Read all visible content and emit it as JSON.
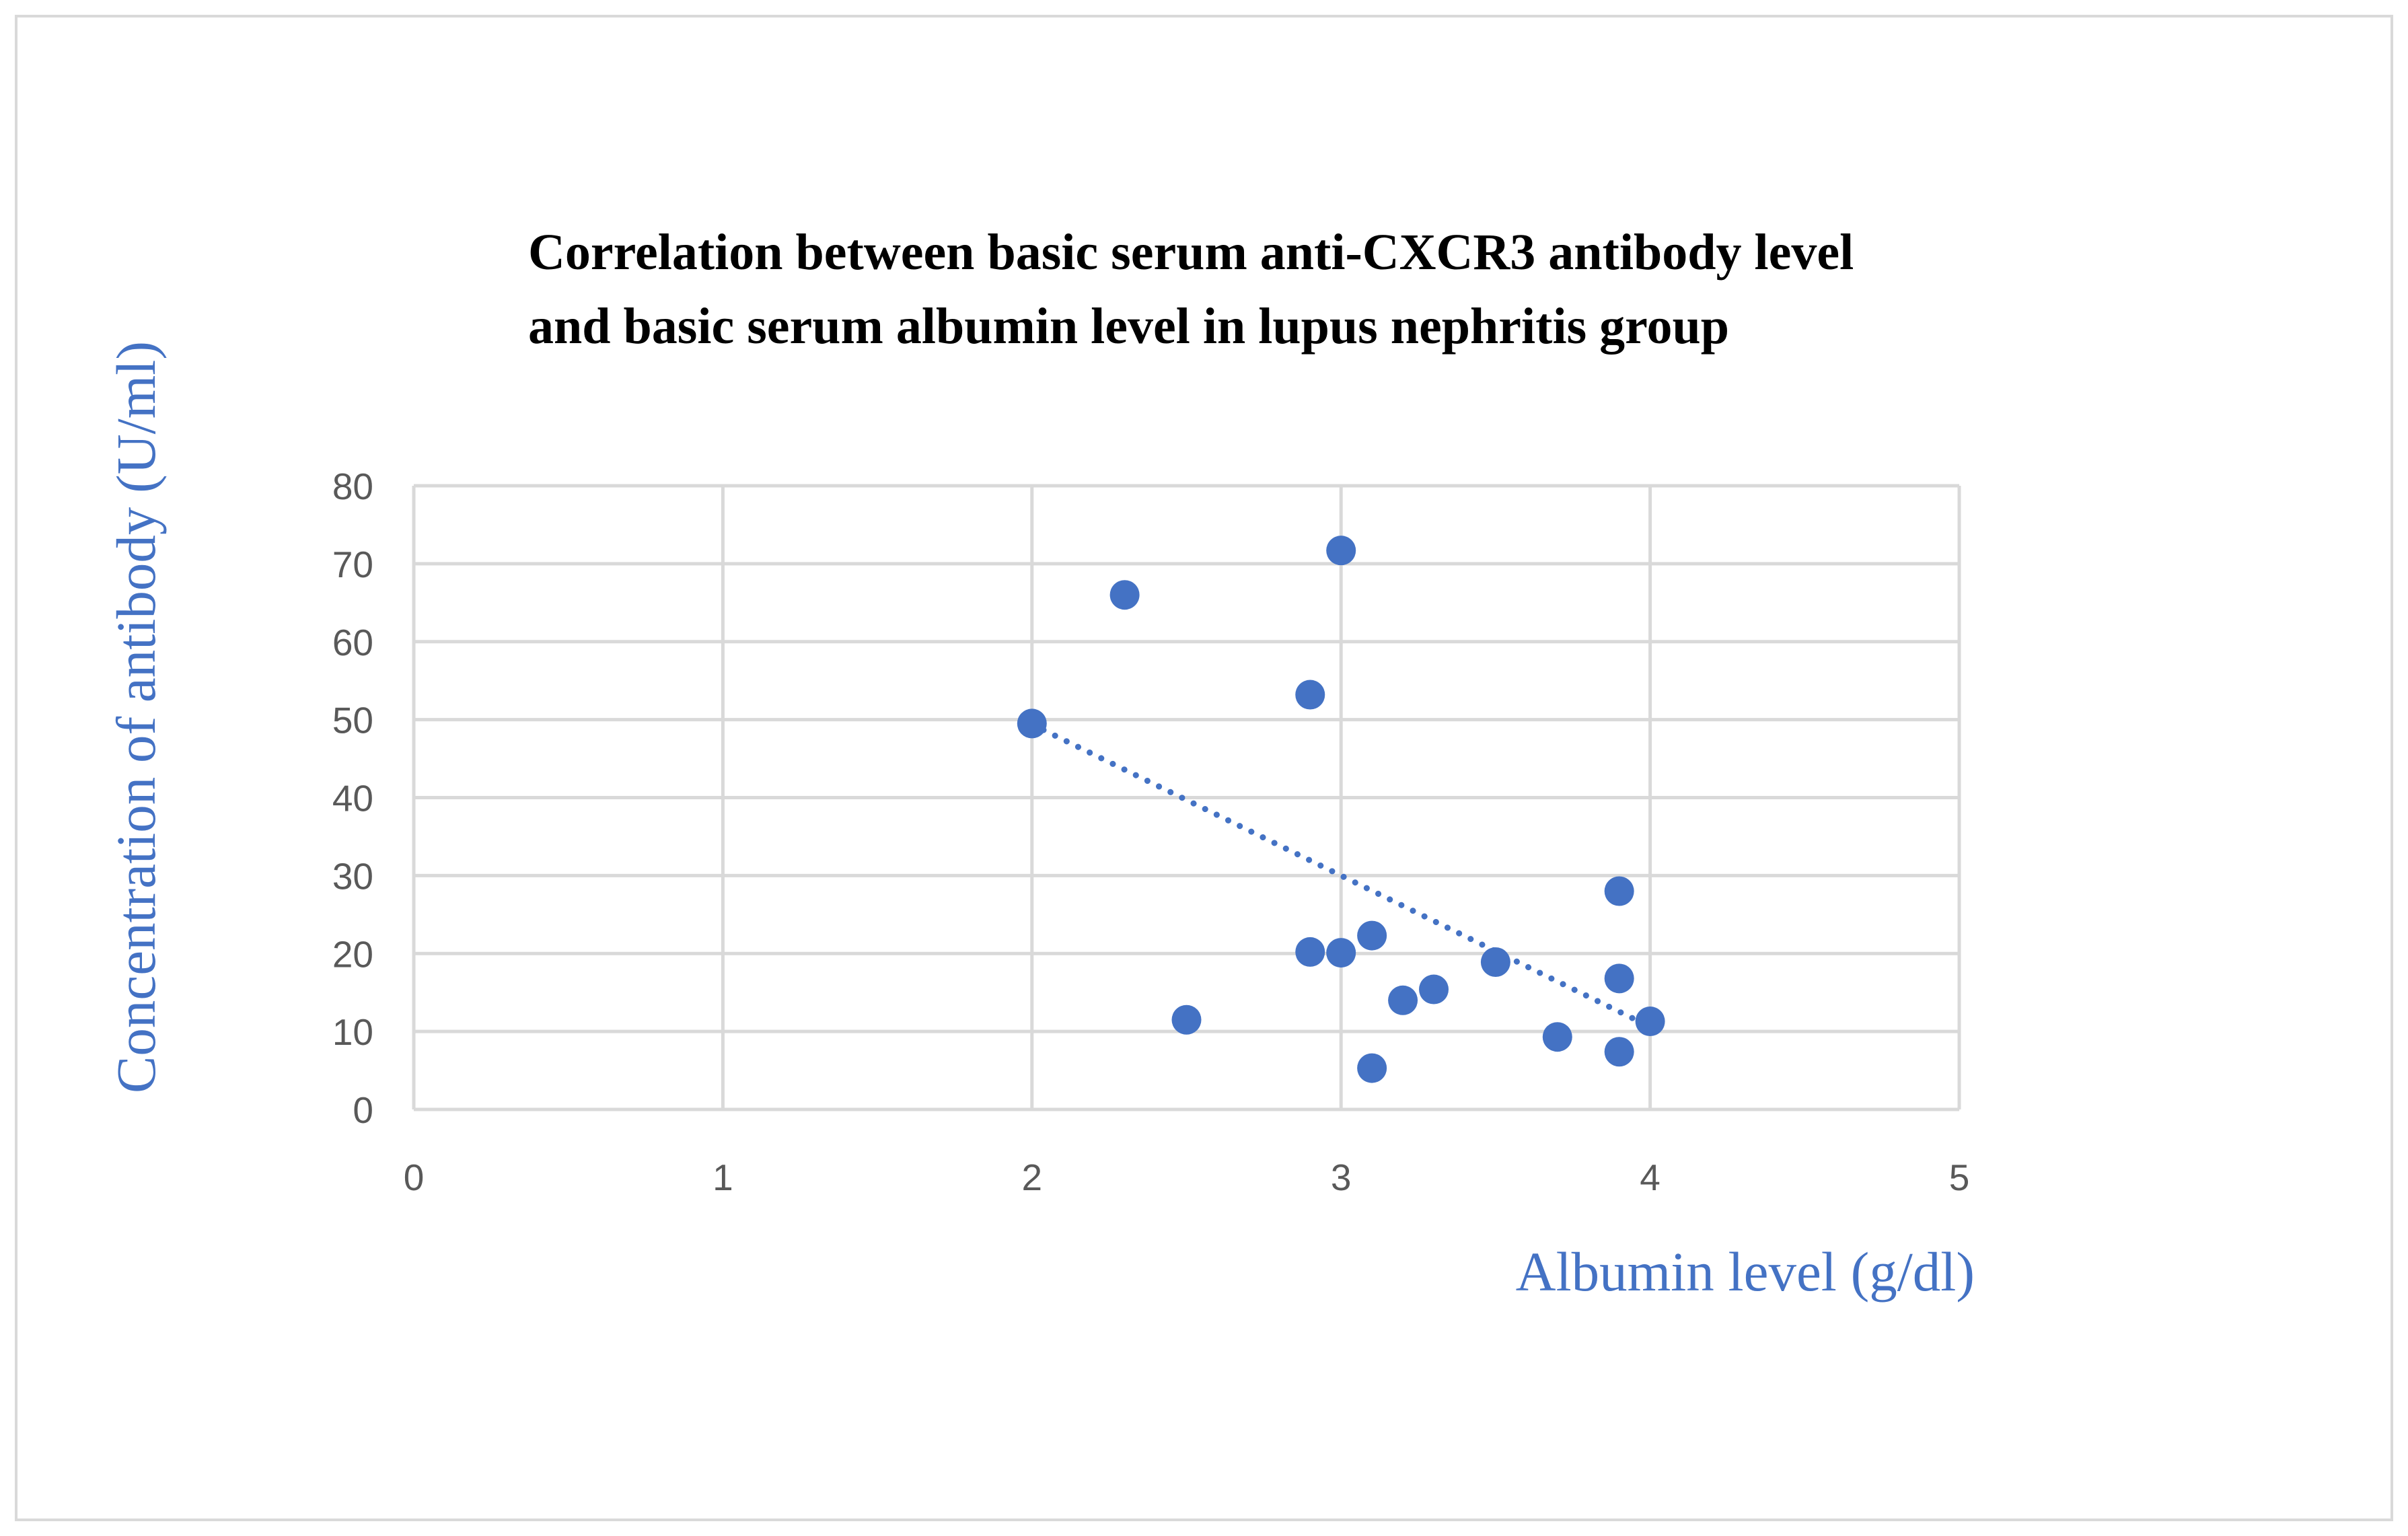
{
  "chart_data": {
    "type": "scatter",
    "title_lines": [
      "Correlation between basic serum anti-CXCR3 antibody level",
      "and basic serum albumin level in lupus nephritis group"
    ],
    "xlabel": "Albumin level (g/dl)",
    "ylabel": "Concentration of antibody (U/ml)",
    "xlim": [
      0,
      5
    ],
    "ylim": [
      0,
      80
    ],
    "x_ticks": [
      "0",
      "1",
      "2",
      "3",
      "4",
      "5"
    ],
    "y_ticks": [
      "0",
      "10",
      "20",
      "30",
      "40",
      "50",
      "60",
      "70",
      "80"
    ],
    "grid": true,
    "series": [
      {
        "name": "Lupus nephritis group",
        "points": [
          {
            "x": 2.0,
            "y": 49.5
          },
          {
            "x": 2.3,
            "y": 66
          },
          {
            "x": 2.5,
            "y": 11.5
          },
          {
            "x": 2.9,
            "y": 53.2
          },
          {
            "x": 2.9,
            "y": 20.2
          },
          {
            "x": 3.0,
            "y": 71.7
          },
          {
            "x": 3.0,
            "y": 20.1
          },
          {
            "x": 3.1,
            "y": 22.3
          },
          {
            "x": 3.1,
            "y": 5.3
          },
          {
            "x": 3.2,
            "y": 14
          },
          {
            "x": 3.3,
            "y": 15.4
          },
          {
            "x": 3.5,
            "y": 18.9
          },
          {
            "x": 3.7,
            "y": 9.3
          },
          {
            "x": 3.9,
            "y": 28
          },
          {
            "x": 3.9,
            "y": 16.8
          },
          {
            "x": 3.9,
            "y": 7.4
          },
          {
            "x": 4.0,
            "y": 11.3
          }
        ]
      }
    ],
    "trendline": {
      "type": "linear",
      "style": "dotted",
      "from": {
        "x": 2.0,
        "y": 49.4
      },
      "to": {
        "x": 4.0,
        "y": 10.6
      }
    },
    "colors": {
      "marker": "#4472c4",
      "axis_title": "#4472c4",
      "tick": "#595959",
      "grid": "#d9d9d9",
      "title": "#000000"
    }
  }
}
